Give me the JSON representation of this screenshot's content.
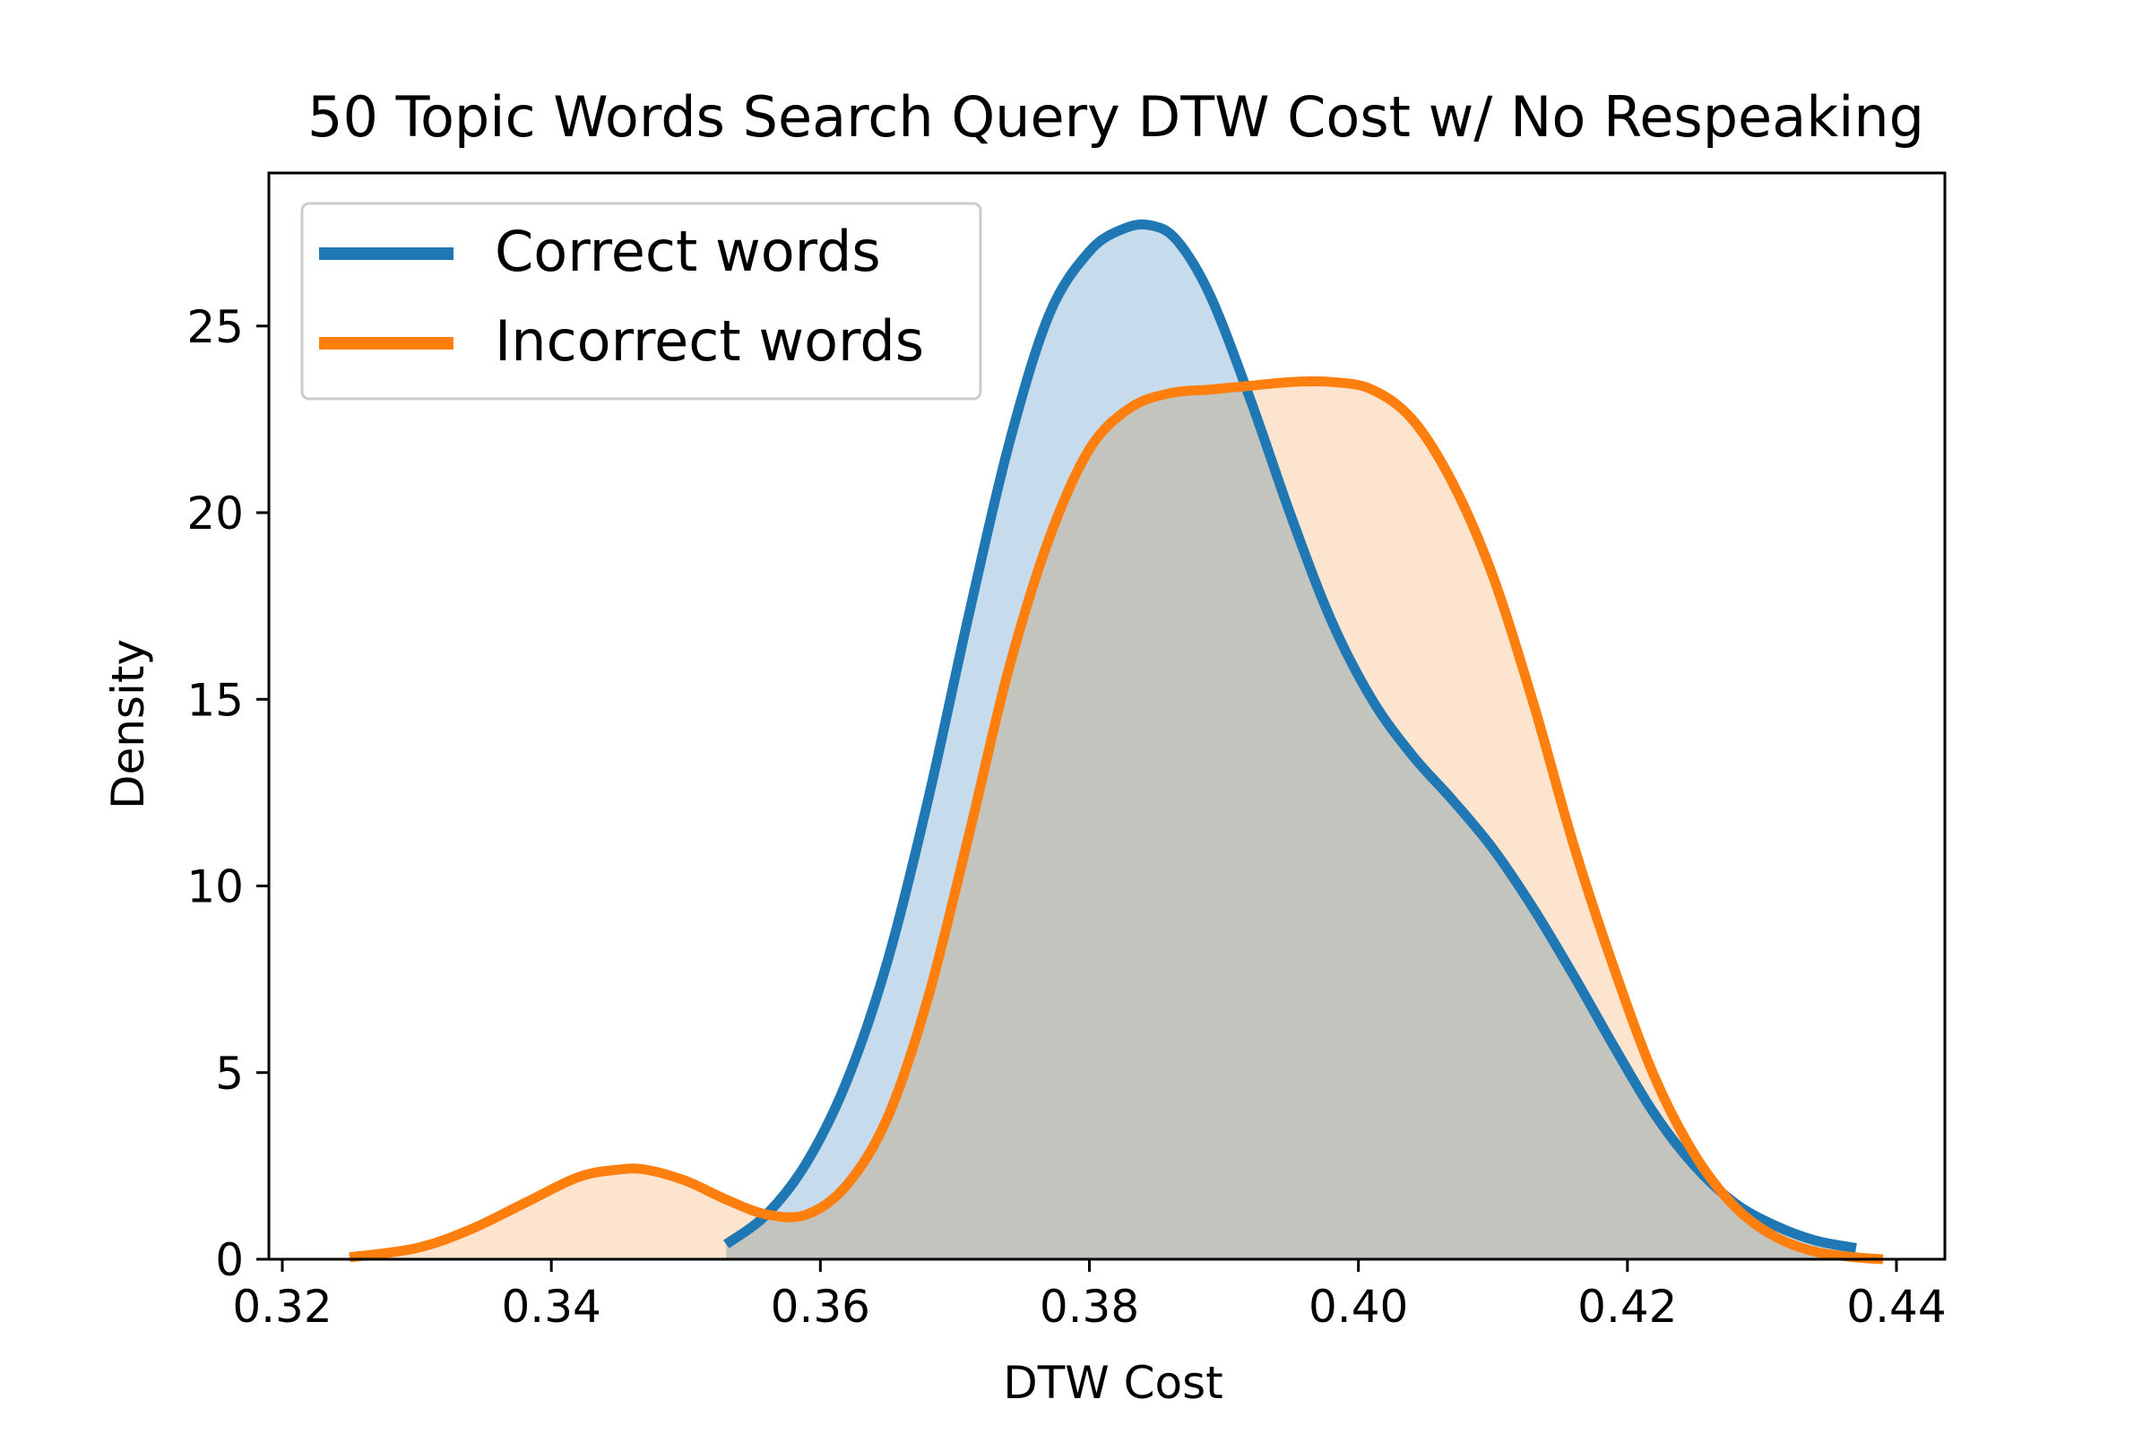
{
  "chart_data": {
    "type": "area",
    "title": "50 Topic Words Search Query DTW Cost w/ No Respeaking",
    "xlabel": "DTW Cost",
    "ylabel": "Density",
    "xlim": [
      0.319,
      0.4436
    ],
    "ylim": [
      0,
      29.1
    ],
    "xticks": [
      0.32,
      0.34,
      0.36,
      0.38,
      0.4,
      0.42,
      0.44
    ],
    "xtick_labels": [
      "0.32",
      "0.34",
      "0.36",
      "0.38",
      "0.40",
      "0.42",
      "0.44"
    ],
    "yticks": [
      0,
      5,
      10,
      15,
      20,
      25
    ],
    "ytick_labels": [
      "0",
      "5",
      "10",
      "15",
      "20",
      "25"
    ],
    "grid": false,
    "legend_position": "top-left",
    "series": [
      {
        "name": "Correct words",
        "color": "#1f77b4",
        "fill_color": "#c6dbeb",
        "x": [
          0.353,
          0.356,
          0.359,
          0.362,
          0.365,
          0.368,
          0.371,
          0.374,
          0.377,
          0.38,
          0.3825,
          0.3845,
          0.3865,
          0.389,
          0.392,
          0.395,
          0.398,
          0.401,
          0.404,
          0.407,
          0.41,
          0.413,
          0.416,
          0.419,
          0.422,
          0.425,
          0.428,
          0.431,
          0.434,
          0.437
        ],
        "y": [
          0.4,
          1.2,
          2.6,
          4.8,
          8.0,
          12.3,
          17.2,
          21.8,
          25.3,
          27.0,
          27.6,
          27.7,
          27.3,
          25.8,
          23.0,
          19.9,
          17.1,
          15.0,
          13.5,
          12.3,
          11.0,
          9.4,
          7.6,
          5.7,
          3.9,
          2.5,
          1.5,
          0.9,
          0.5,
          0.3
        ]
      },
      {
        "name": "Incorrect words",
        "color": "#ff7f0e",
        "fill_color": "#fdddc1",
        "x": [
          0.325,
          0.33,
          0.334,
          0.338,
          0.342,
          0.345,
          0.347,
          0.35,
          0.353,
          0.356,
          0.359,
          0.362,
          0.365,
          0.368,
          0.371,
          0.374,
          0.377,
          0.38,
          0.383,
          0.386,
          0.389,
          0.392,
          0.395,
          0.398,
          0.401,
          0.404,
          0.407,
          0.41,
          0.413,
          0.416,
          0.419,
          0.422,
          0.425,
          0.428,
          0.431,
          0.434,
          0.437,
          0.439
        ],
        "y": [
          0.05,
          0.3,
          0.8,
          1.5,
          2.2,
          2.4,
          2.4,
          2.1,
          1.6,
          1.2,
          1.2,
          2.0,
          3.8,
          7.0,
          11.3,
          15.8,
          19.3,
          21.7,
          22.8,
          23.2,
          23.3,
          23.4,
          23.5,
          23.5,
          23.3,
          22.5,
          20.8,
          18.3,
          14.9,
          11.1,
          7.8,
          4.9,
          2.8,
          1.4,
          0.6,
          0.2,
          0.05,
          0.0
        ]
      }
    ]
  }
}
